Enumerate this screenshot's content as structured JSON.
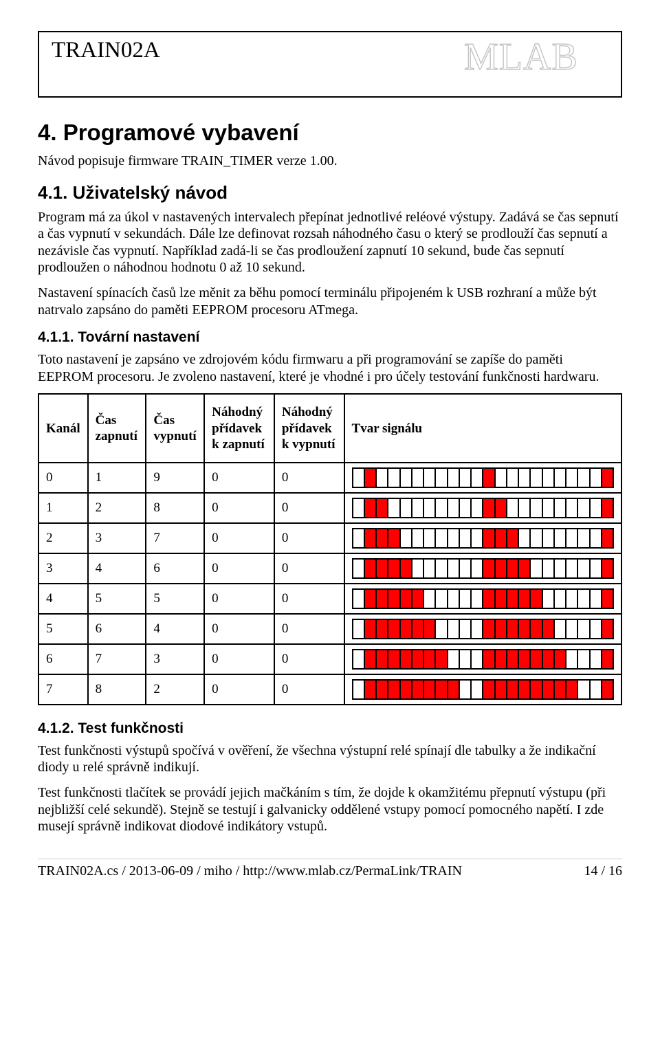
{
  "header": {
    "title": "TRAIN02A",
    "logo_text": "MLAB",
    "logo_fill": "#ffffff",
    "logo_stroke": "#c8c8c8"
  },
  "h1": "4. Programové vybavení",
  "p1": "Návod popisuje firmware TRAIN_TIMER verze 1.00.",
  "h2_1": "4.1. Uživatelský návod",
  "p2": "Program má za úkol v nastavených intervalech přepínat jednotlivé reléové výstupy. Zadává se čas sepnutí a čas vypnutí v sekundách. Dále lze definovat rozsah náhodného času o který se prodlouží čas sepnutí a nezávisle čas vypnutí. Například zadá-li se čas prodloužení zapnutí 10 sekund, bude čas sepnutí prodloužen o náhodnou hodnotu 0 až 10 sekund.",
  "p3": "Nastavení spínacích časů lze měnit za běhu pomocí terminálu připojeném k USB rozhraní a může být natrvalo zapsáno do paměti EEPROM procesoru ATmega.",
  "h3_1": "4.1.1. Tovární nastavení",
  "p4": "Toto nastavení je zapsáno ve zdrojovém kódu firmwaru a při programování se zapíše do paměti EEPROM procesoru. Je zvoleno nastavení, které je vhodné i pro účely testování funkčnosti hardwaru.",
  "table": {
    "headers": [
      "Kanál",
      "Čas zapnutí",
      "Čas vypnutí",
      "Náhodný přídavek k zapnutí",
      "Náhodný přídavek k vypnutí",
      "Tvar signálu"
    ],
    "rows": [
      {
        "ch": "0",
        "on": "1",
        "off": "9",
        "ron": "0",
        "roff": "0",
        "wave": [
          0,
          1,
          0,
          0,
          0,
          0,
          0,
          0,
          0,
          0,
          0,
          1,
          0,
          0,
          0,
          0,
          0,
          0,
          0,
          0,
          0,
          1
        ]
      },
      {
        "ch": "1",
        "on": "2",
        "off": "8",
        "ron": "0",
        "roff": "0",
        "wave": [
          0,
          1,
          1,
          0,
          0,
          0,
          0,
          0,
          0,
          0,
          0,
          1,
          1,
          0,
          0,
          0,
          0,
          0,
          0,
          0,
          0,
          1
        ]
      },
      {
        "ch": "2",
        "on": "3",
        "off": "7",
        "ron": "0",
        "roff": "0",
        "wave": [
          0,
          1,
          1,
          1,
          0,
          0,
          0,
          0,
          0,
          0,
          0,
          1,
          1,
          1,
          0,
          0,
          0,
          0,
          0,
          0,
          0,
          1
        ]
      },
      {
        "ch": "3",
        "on": "4",
        "off": "6",
        "ron": "0",
        "roff": "0",
        "wave": [
          0,
          1,
          1,
          1,
          1,
          0,
          0,
          0,
          0,
          0,
          0,
          1,
          1,
          1,
          1,
          0,
          0,
          0,
          0,
          0,
          0,
          1
        ]
      },
      {
        "ch": "4",
        "on": "5",
        "off": "5",
        "ron": "0",
        "roff": "0",
        "wave": [
          0,
          1,
          1,
          1,
          1,
          1,
          0,
          0,
          0,
          0,
          0,
          1,
          1,
          1,
          1,
          1,
          0,
          0,
          0,
          0,
          0,
          1
        ]
      },
      {
        "ch": "5",
        "on": "6",
        "off": "4",
        "ron": "0",
        "roff": "0",
        "wave": [
          0,
          1,
          1,
          1,
          1,
          1,
          1,
          0,
          0,
          0,
          0,
          1,
          1,
          1,
          1,
          1,
          1,
          0,
          0,
          0,
          0,
          1
        ]
      },
      {
        "ch": "6",
        "on": "7",
        "off": "3",
        "ron": "0",
        "roff": "0",
        "wave": [
          0,
          1,
          1,
          1,
          1,
          1,
          1,
          1,
          0,
          0,
          0,
          1,
          1,
          1,
          1,
          1,
          1,
          1,
          0,
          0,
          0,
          1
        ]
      },
      {
        "ch": "7",
        "on": "8",
        "off": "2",
        "ron": "0",
        "roff": "0",
        "wave": [
          0,
          1,
          1,
          1,
          1,
          1,
          1,
          1,
          1,
          0,
          0,
          1,
          1,
          1,
          1,
          1,
          1,
          1,
          1,
          0,
          0,
          1
        ]
      }
    ],
    "col_widths": [
      "8%",
      "10%",
      "10%",
      "12%",
      "12%",
      "48%"
    ]
  },
  "h3_2": "4.1.2. Test funkčnosti",
  "p5": "Test funkčnosti výstupů spočívá v ověření, že všechna výstupní relé spínají dle tabulky a že indikační diody u relé správně indikují.",
  "p6": "Test funkčnosti tlačítek se provádí jejich mačkáním s tím, že dojde k okamžitému přepnutí výstupu (při nejbližší celé sekundě). Stejně se testují i galvanicky oddělené vstupy pomocí pomocného napětí. I zde musejí správně indikovat diodové indikátory vstupů.",
  "footer": {
    "left": "TRAIN02A.cs / 2013-06-09 / miho / http://www.mlab.cz/PermaLink/TRAIN",
    "right": "14 / 16"
  }
}
